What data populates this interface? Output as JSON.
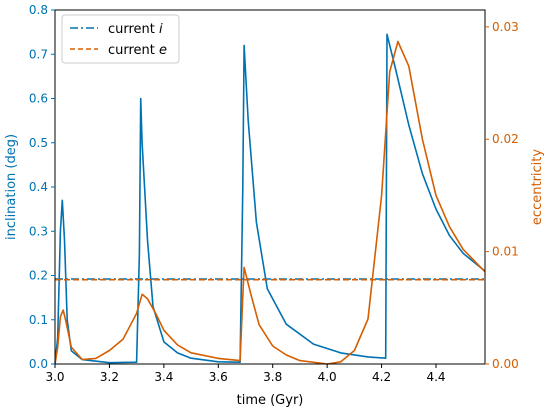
{
  "chart_data": {
    "type": "line",
    "xlabel": "time (Gyr)",
    "ylabel_left": "inclination (deg)",
    "ylabel_right": "eccentricity",
    "xlim": [
      3.0,
      4.58
    ],
    "ylim_left": [
      0.0,
      0.8
    ],
    "ylim_right": [
      0.0,
      0.0315
    ],
    "x_ticks": [
      "3.0",
      "3.2",
      "3.4",
      "3.6",
      "3.8",
      "4.0",
      "4.2",
      "4.4"
    ],
    "y_left_ticks": [
      "0.0",
      "0.1",
      "0.2",
      "0.3",
      "0.4",
      "0.5",
      "0.6",
      "0.7",
      "0.8"
    ],
    "y_right_ticks": [
      "0.00",
      "0.01",
      "0.02",
      "0.03"
    ],
    "grid": false,
    "legend_position": "top-left",
    "legend": [
      {
        "label": "current ",
        "math": "i",
        "style": "dash-dot",
        "color": "#0072b2"
      },
      {
        "label": "current ",
        "math": "e",
        "style": "dashed",
        "color": "#d55e00"
      }
    ],
    "colors": {
      "inclination": "#0072b2",
      "eccentricity": "#d55e00"
    },
    "series": [
      {
        "axis": "left",
        "color": "#0072b2",
        "style": "solid",
        "points": [
          [
            3.0,
            0.0
          ],
          [
            3.01,
            0.06
          ],
          [
            3.02,
            0.3
          ],
          [
            3.027,
            0.37
          ],
          [
            3.035,
            0.28
          ],
          [
            3.045,
            0.1
          ],
          [
            3.06,
            0.03
          ],
          [
            3.1,
            0.01
          ],
          [
            3.2,
            0.003
          ],
          [
            3.3,
            0.004
          ],
          [
            3.31,
            0.25
          ],
          [
            3.315,
            0.6
          ],
          [
            3.32,
            0.5
          ],
          [
            3.34,
            0.28
          ],
          [
            3.36,
            0.13
          ],
          [
            3.4,
            0.05
          ],
          [
            3.45,
            0.025
          ],
          [
            3.5,
            0.013
          ],
          [
            3.6,
            0.005
          ],
          [
            3.68,
            0.004
          ],
          [
            3.69,
            0.4
          ],
          [
            3.695,
            0.72
          ],
          [
            3.71,
            0.55
          ],
          [
            3.74,
            0.32
          ],
          [
            3.78,
            0.17
          ],
          [
            3.85,
            0.09
          ],
          [
            3.95,
            0.045
          ],
          [
            4.05,
            0.025
          ],
          [
            4.15,
            0.016
          ],
          [
            4.215,
            0.013
          ],
          [
            4.22,
            0.745
          ],
          [
            4.25,
            0.67
          ],
          [
            4.3,
            0.54
          ],
          [
            4.35,
            0.43
          ],
          [
            4.4,
            0.35
          ],
          [
            4.45,
            0.29
          ],
          [
            4.5,
            0.25
          ],
          [
            4.58,
            0.21
          ]
        ]
      },
      {
        "axis": "right",
        "color": "#d55e00",
        "style": "solid",
        "points": [
          [
            3.0,
            0.0
          ],
          [
            3.01,
            0.0015
          ],
          [
            3.02,
            0.0042
          ],
          [
            3.03,
            0.0048
          ],
          [
            3.04,
            0.0038
          ],
          [
            3.06,
            0.0015
          ],
          [
            3.1,
            0.0004
          ],
          [
            3.15,
            0.0005
          ],
          [
            3.2,
            0.0012
          ],
          [
            3.25,
            0.0022
          ],
          [
            3.3,
            0.0045
          ],
          [
            3.32,
            0.0062
          ],
          [
            3.34,
            0.0058
          ],
          [
            3.37,
            0.0045
          ],
          [
            3.4,
            0.003
          ],
          [
            3.45,
            0.0017
          ],
          [
            3.5,
            0.001
          ],
          [
            3.6,
            0.0005
          ],
          [
            3.68,
            0.0003
          ],
          [
            3.69,
            0.006
          ],
          [
            3.695,
            0.0086
          ],
          [
            3.72,
            0.0062
          ],
          [
            3.75,
            0.0035
          ],
          [
            3.8,
            0.0016
          ],
          [
            3.85,
            0.0008
          ],
          [
            3.9,
            0.0003
          ],
          [
            4.0,
            0.0
          ],
          [
            4.05,
            0.0002
          ],
          [
            4.1,
            0.0012
          ],
          [
            4.15,
            0.004
          ],
          [
            4.2,
            0.015
          ],
          [
            4.23,
            0.026
          ],
          [
            4.26,
            0.0287
          ],
          [
            4.3,
            0.0265
          ],
          [
            4.35,
            0.02
          ],
          [
            4.4,
            0.015
          ],
          [
            4.45,
            0.0122
          ],
          [
            4.5,
            0.0102
          ],
          [
            4.58,
            0.0082
          ]
        ]
      },
      {
        "axis": "left",
        "color": "#0072b2",
        "style": "dash-dot",
        "name": "current i",
        "points": [
          [
            3.0,
            0.192
          ],
          [
            4.58,
            0.192
          ]
        ]
      },
      {
        "axis": "right",
        "color": "#d55e00",
        "style": "dashed",
        "name": "current e",
        "points": [
          [
            3.0,
            0.0075
          ],
          [
            4.58,
            0.0075
          ]
        ]
      }
    ]
  }
}
